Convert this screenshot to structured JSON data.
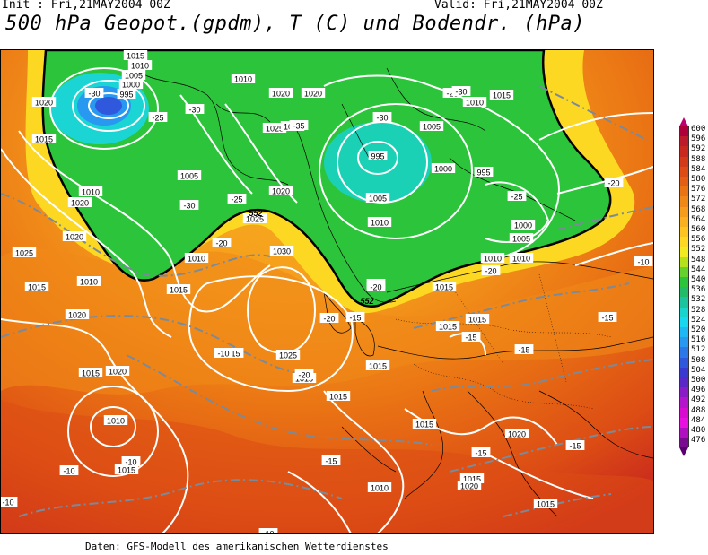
{
  "header": {
    "init": "Init : Fri,21MAY2004 00Z",
    "valid": "Valid: Fri,21MAY2004 00Z",
    "title": "500 hPa Geopot.(gpdm), T (C) und Bodendr. (hPa)"
  },
  "footer": "Daten: GFS-Modell des amerikanischen Wetterdienstes",
  "colorbar": {
    "top_arrow_color": "#c0006e",
    "bottom_arrow_color": "#5a0070",
    "levels": [
      {
        "label": "600",
        "color": "#b0003c"
      },
      {
        "label": "596",
        "color": "#bd1a2a"
      },
      {
        "label": "592",
        "color": "#c8281e"
      },
      {
        "label": "588",
        "color": "#d23a18"
      },
      {
        "label": "584",
        "color": "#dc4c14"
      },
      {
        "label": "580",
        "color": "#e35f14"
      },
      {
        "label": "576",
        "color": "#ea7414"
      },
      {
        "label": "572",
        "color": "#f08818"
      },
      {
        "label": "568",
        "color": "#f59c1c"
      },
      {
        "label": "564",
        "color": "#f8b01e"
      },
      {
        "label": "560",
        "color": "#fbc420"
      },
      {
        "label": "556",
        "color": "#fcd822"
      },
      {
        "label": "552",
        "color": "#f0ea20"
      },
      {
        "label": "548",
        "color": "#b4e01c"
      },
      {
        "label": "544",
        "color": "#64d22a"
      },
      {
        "label": "540",
        "color": "#2cc43a"
      },
      {
        "label": "536",
        "color": "#22bc68"
      },
      {
        "label": "532",
        "color": "#1cc49e"
      },
      {
        "label": "528",
        "color": "#18d4cc"
      },
      {
        "label": "524",
        "color": "#18d8f0"
      },
      {
        "label": "520",
        "color": "#20b8f4"
      },
      {
        "label": "516",
        "color": "#2898f0"
      },
      {
        "label": "512",
        "color": "#2c78e8"
      },
      {
        "label": "508",
        "color": "#3058dc"
      },
      {
        "label": "504",
        "color": "#3a3ad0"
      },
      {
        "label": "500",
        "color": "#5a28c8"
      },
      {
        "label": "496",
        "color": "#8a1cc8"
      },
      {
        "label": "492",
        "color": "#b414cc"
      },
      {
        "label": "488",
        "color": "#d80cd0"
      },
      {
        "label": "484",
        "color": "#e810e0"
      },
      {
        "label": "480",
        "color": "#b010c0"
      },
      {
        "label": "476",
        "color": "#7a0c90"
      }
    ]
  },
  "map_labels": {
    "pressure": [
      "1015",
      "1010",
      "1005",
      "1000",
      "995",
      "1020",
      "1015",
      "1010",
      "1020",
      "1020",
      "1005",
      "1010",
      "1025",
      "1035",
      "1020",
      "1020",
      "1025",
      "1020",
      "1030",
      "1015",
      "1010",
      "1000",
      "995",
      "1005",
      "1015",
      "1010",
      "995",
      "1005",
      "1000",
      "1005",
      "1010",
      "1010",
      "1010",
      "1010",
      "1015",
      "1015",
      "1020",
      "1025",
      "1015",
      "1020",
      "1015",
      "1015",
      "1015",
      "1015",
      "1020",
      "1010",
      "1015",
      "1015",
      "1015",
      "1010",
      "1015",
      "1020",
      "1015",
      "1025"
    ],
    "temperature": [
      "-30",
      "-35",
      "-25",
      "-30",
      "-30",
      "-25",
      "-30",
      "-25",
      "-30",
      "-25",
      "-20",
      "-20",
      "-20",
      "-20",
      "-15",
      "-15",
      "-15",
      "-20",
      "-10",
      "-20",
      "-15",
      "-15",
      "-15",
      "-10",
      "-10",
      "-15",
      "-15",
      "-10",
      "-10",
      "-10",
      "-20"
    ],
    "geopotential": [
      "552",
      "552"
    ]
  }
}
